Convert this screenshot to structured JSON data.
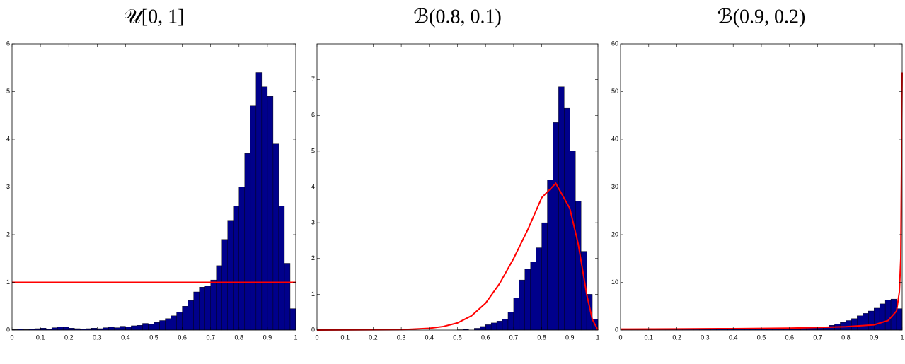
{
  "chart_data": [
    {
      "type": "histogram",
      "title": "𝒰[0, 1]",
      "bins": [
        0,
        0.02,
        0.04,
        0.06,
        0.08,
        0.1,
        0.12,
        0.14,
        0.16,
        0.18,
        0.2,
        0.22,
        0.24,
        0.26,
        0.28,
        0.3,
        0.32,
        0.34,
        0.36,
        0.38,
        0.4,
        0.42,
        0.44,
        0.46,
        0.48,
        0.5,
        0.52,
        0.54,
        0.56,
        0.58,
        0.6,
        0.62,
        0.64,
        0.66,
        0.68,
        0.7,
        0.72,
        0.74,
        0.76,
        0.78,
        0.8,
        0.82,
        0.84,
        0.86,
        0.88,
        0.9,
        0.92,
        0.94,
        0.96,
        0.98,
        1
      ],
      "counts": [
        0.01,
        0.02,
        0.01,
        0.02,
        0.03,
        0.04,
        0.02,
        0.05,
        0.07,
        0.06,
        0.04,
        0.03,
        0.02,
        0.03,
        0.04,
        0.03,
        0.05,
        0.06,
        0.05,
        0.08,
        0.07,
        0.09,
        0.1,
        0.14,
        0.12,
        0.16,
        0.2,
        0.24,
        0.3,
        0.38,
        0.5,
        0.62,
        0.8,
        0.9,
        0.92,
        1.05,
        1.35,
        1.9,
        2.3,
        2.6,
        3.0,
        3.7,
        4.7,
        5.4,
        5.1,
        4.9,
        3.9,
        2.6,
        1.4,
        0.45
      ],
      "color": "#00008b",
      "curve": {
        "x": [
          0,
          1
        ],
        "values": [
          1,
          1
        ],
        "color": "#ff0000"
      },
      "xlim": [
        0,
        1
      ],
      "xticks": [
        0,
        0.1,
        0.2,
        0.3,
        0.4,
        0.5,
        0.6,
        0.7,
        0.8,
        0.9,
        1
      ],
      "ylim": [
        0,
        6
      ],
      "yticks": [
        0,
        1,
        2,
        3,
        4,
        5,
        6
      ]
    },
    {
      "type": "histogram",
      "title": "ℬ(0.8, 0.1)",
      "bins": [
        0,
        0.02,
        0.04,
        0.06,
        0.08,
        0.1,
        0.12,
        0.14,
        0.16,
        0.18,
        0.2,
        0.22,
        0.24,
        0.26,
        0.28,
        0.3,
        0.32,
        0.34,
        0.36,
        0.38,
        0.4,
        0.42,
        0.44,
        0.46,
        0.48,
        0.5,
        0.52,
        0.54,
        0.56,
        0.58,
        0.6,
        0.62,
        0.64,
        0.66,
        0.68,
        0.7,
        0.72,
        0.74,
        0.76,
        0.78,
        0.8,
        0.82,
        0.84,
        0.86,
        0.88,
        0.9,
        0.92,
        0.94,
        0.96,
        0.98,
        1
      ],
      "counts": [
        0,
        0,
        0,
        0,
        0,
        0,
        0,
        0,
        0,
        0,
        0,
        0,
        0,
        0,
        0,
        0,
        0,
        0,
        0,
        0,
        0,
        0,
        0,
        0,
        0,
        0.01,
        0.02,
        0,
        0.05,
        0.1,
        0.15,
        0.2,
        0.25,
        0.3,
        0.5,
        0.9,
        1.4,
        1.7,
        1.9,
        2.3,
        3.0,
        4.2,
        5.8,
        6.8,
        6.2,
        5.0,
        3.6,
        2.2,
        1.0,
        0.3
      ],
      "color": "#00008b",
      "curve": {
        "x": [
          0,
          0.3,
          0.4,
          0.45,
          0.5,
          0.55,
          0.6,
          0.65,
          0.7,
          0.75,
          0.8,
          0.85,
          0.9,
          0.93,
          0.96,
          0.98,
          1
        ],
        "values": [
          0,
          0.01,
          0.05,
          0.1,
          0.2,
          0.4,
          0.75,
          1.3,
          2.0,
          2.8,
          3.7,
          4.1,
          3.4,
          2.4,
          1.0,
          0.3,
          0
        ],
        "color": "#ff0000"
      },
      "xlim": [
        0,
        1
      ],
      "xticks": [
        0,
        0.1,
        0.2,
        0.3,
        0.4,
        0.5,
        0.6,
        0.7,
        0.8,
        0.9,
        1
      ],
      "ylim": [
        0,
        8
      ],
      "yticks": [
        0,
        1,
        2,
        3,
        4,
        5,
        6,
        7
      ]
    },
    {
      "type": "histogram",
      "title": "ℬ(0.9, 0.2)",
      "bins": [
        0,
        0.02,
        0.04,
        0.06,
        0.08,
        0.1,
        0.12,
        0.14,
        0.16,
        0.18,
        0.2,
        0.22,
        0.24,
        0.26,
        0.28,
        0.3,
        0.32,
        0.34,
        0.36,
        0.38,
        0.4,
        0.42,
        0.44,
        0.46,
        0.48,
        0.5,
        0.52,
        0.54,
        0.56,
        0.58,
        0.6,
        0.62,
        0.64,
        0.66,
        0.68,
        0.7,
        0.72,
        0.74,
        0.76,
        0.78,
        0.8,
        0.82,
        0.84,
        0.86,
        0.88,
        0.9,
        0.92,
        0.94,
        0.96,
        0.98,
        1
      ],
      "counts": [
        0.2,
        0.15,
        0.2,
        0.2,
        0.15,
        0.2,
        0.2,
        0.2,
        0.15,
        0.2,
        0.2,
        0.2,
        0.25,
        0.2,
        0.2,
        0.2,
        0.25,
        0.2,
        0.25,
        0.25,
        0.2,
        0.25,
        0.25,
        0.3,
        0.25,
        0.3,
        0.3,
        0.3,
        0.35,
        0.3,
        0.35,
        0.35,
        0.4,
        0.4,
        0.45,
        0.5,
        0.7,
        1.0,
        1.3,
        1.6,
        2.0,
        2.4,
        3.0,
        3.5,
        4.0,
        4.6,
        5.5,
        6.3,
        6.5,
        4.5
      ],
      "color": "#00008b",
      "curve": {
        "x": [
          0,
          0.2,
          0.4,
          0.6,
          0.8,
          0.9,
          0.95,
          0.98,
          0.99,
          0.995,
          1
        ],
        "values": [
          0.2,
          0.25,
          0.3,
          0.4,
          0.7,
          1.1,
          2,
          4,
          8,
          15,
          54
        ],
        "color": "#ff0000"
      },
      "xlim": [
        0,
        1
      ],
      "xticks": [
        0,
        0.1,
        0.2,
        0.3,
        0.4,
        0.5,
        0.6,
        0.7,
        0.8,
        0.9,
        1
      ],
      "ylim": [
        0,
        60
      ],
      "yticks": [
        0,
        10,
        20,
        30,
        40,
        50,
        60
      ]
    }
  ]
}
